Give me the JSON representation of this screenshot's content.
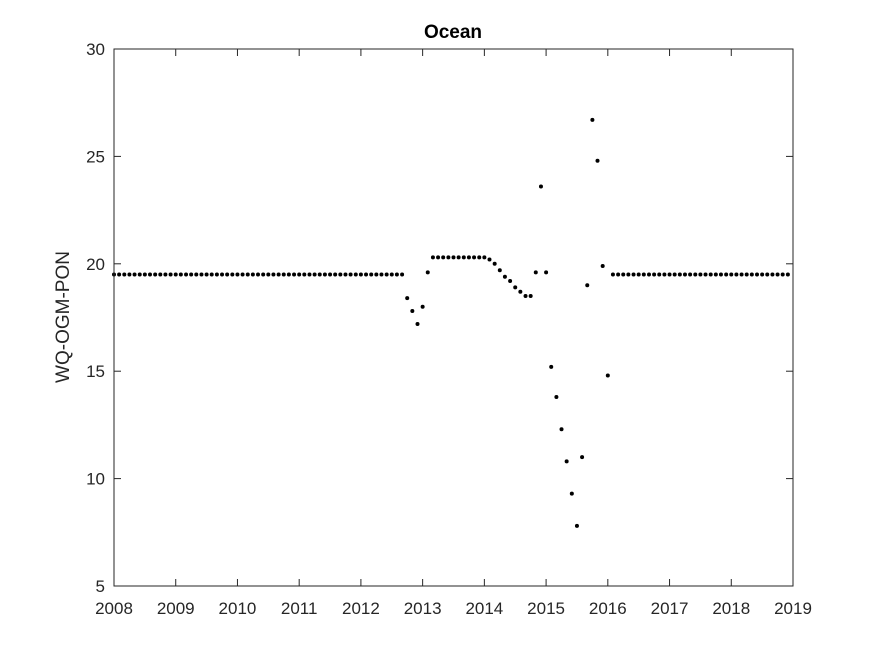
{
  "chart_data": {
    "type": "scatter",
    "title": "Ocean",
    "xlabel": "",
    "ylabel": "WQ-OGM-PON",
    "xlim": [
      2008,
      2019
    ],
    "ylim": [
      5,
      30
    ],
    "xticks": [
      2008,
      2009,
      2010,
      2011,
      2012,
      2013,
      2014,
      2015,
      2016,
      2017,
      2018,
      2019
    ],
    "yticks": [
      5,
      10,
      15,
      20,
      25,
      30
    ],
    "grid": false,
    "legend": "none",
    "marker_color": "#000000",
    "series": [
      {
        "x": [
          2008.0,
          2008.083,
          2008.167,
          2008.25,
          2008.333,
          2008.417,
          2008.5,
          2008.583,
          2008.667,
          2008.75,
          2008.833,
          2008.917,
          2009.0,
          2009.083,
          2009.167,
          2009.25,
          2009.333,
          2009.417,
          2009.5,
          2009.583,
          2009.667,
          2009.75,
          2009.833,
          2009.917,
          2010.0,
          2010.083,
          2010.167,
          2010.25,
          2010.333,
          2010.417,
          2010.5,
          2010.583,
          2010.667,
          2010.75,
          2010.833,
          2010.917,
          2011.0,
          2011.083,
          2011.167,
          2011.25,
          2011.333,
          2011.417,
          2011.5,
          2011.583,
          2011.667,
          2011.75,
          2011.833,
          2011.917,
          2012.0,
          2012.083,
          2012.167,
          2012.25,
          2012.333,
          2012.417,
          2012.5,
          2012.583,
          2012.667,
          2012.75,
          2012.833,
          2012.917,
          2013.0,
          2013.083,
          2013.167,
          2013.25,
          2013.333,
          2013.417,
          2013.5,
          2013.583,
          2013.667,
          2013.75,
          2013.833,
          2013.917,
          2014.0,
          2014.083,
          2014.167,
          2014.25,
          2014.333,
          2014.417,
          2014.5,
          2014.583,
          2014.667,
          2014.75,
          2014.833,
          2014.917,
          2015.0,
          2015.083,
          2015.167,
          2015.25,
          2015.333,
          2015.417,
          2015.5,
          2015.583,
          2015.667,
          2015.75,
          2015.833,
          2015.917,
          2016.0,
          2016.083,
          2016.167,
          2016.25,
          2016.333,
          2016.417,
          2016.5,
          2016.583,
          2016.667,
          2016.75,
          2016.833,
          2016.917,
          2017.0,
          2017.083,
          2017.167,
          2017.25,
          2017.333,
          2017.417,
          2017.5,
          2017.583,
          2017.667,
          2017.75,
          2017.833,
          2017.917,
          2018.0,
          2018.083,
          2018.167,
          2018.25,
          2018.333,
          2018.417,
          2018.5,
          2018.583,
          2018.667,
          2018.75,
          2018.833,
          2018.917
        ],
        "y": [
          19.5,
          19.5,
          19.5,
          19.5,
          19.5,
          19.5,
          19.5,
          19.5,
          19.5,
          19.5,
          19.5,
          19.5,
          19.5,
          19.5,
          19.5,
          19.5,
          19.5,
          19.5,
          19.5,
          19.5,
          19.5,
          19.5,
          19.5,
          19.5,
          19.5,
          19.5,
          19.5,
          19.5,
          19.5,
          19.5,
          19.5,
          19.5,
          19.5,
          19.5,
          19.5,
          19.5,
          19.5,
          19.5,
          19.5,
          19.5,
          19.5,
          19.5,
          19.5,
          19.5,
          19.5,
          19.5,
          19.5,
          19.5,
          19.5,
          19.5,
          19.5,
          19.5,
          19.5,
          19.5,
          19.5,
          19.5,
          19.5,
          18.4,
          17.8,
          17.2,
          18.0,
          19.6,
          20.3,
          20.3,
          20.3,
          20.3,
          20.3,
          20.3,
          20.3,
          20.3,
          20.3,
          20.3,
          20.3,
          20.2,
          20.0,
          19.7,
          19.4,
          19.2,
          18.9,
          18.7,
          18.5,
          18.5,
          19.6,
          23.6,
          19.6,
          15.2,
          13.8,
          12.3,
          10.8,
          9.3,
          7.8,
          11.0,
          19.0,
          26.7,
          24.8,
          19.9,
          14.8,
          19.5,
          19.5,
          19.5,
          19.5,
          19.5,
          19.5,
          19.5,
          19.5,
          19.5,
          19.5,
          19.5,
          19.5,
          19.5,
          19.5,
          19.5,
          19.5,
          19.5,
          19.5,
          19.5,
          19.5,
          19.5,
          19.5,
          19.5,
          19.5,
          19.5,
          19.5,
          19.5,
          19.5,
          19.5,
          19.5,
          19.5,
          19.5,
          19.5,
          19.5,
          19.5
        ]
      }
    ]
  }
}
